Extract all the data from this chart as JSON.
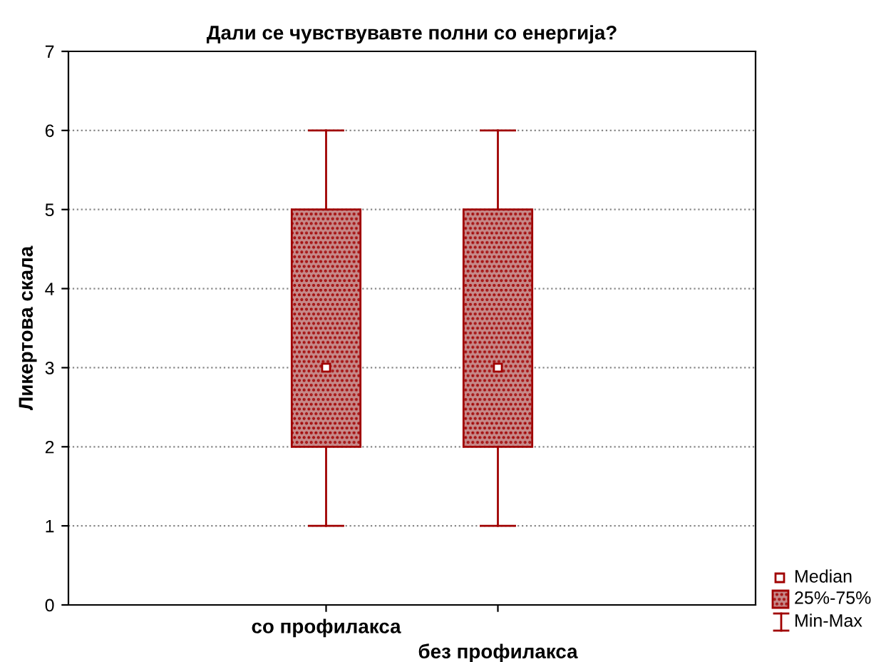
{
  "chart_data": {
    "type": "box",
    "title": "Дали се чувствувавте полни со енергија?",
    "ylabel": "Ликертова скала",
    "categories": [
      "со профилакса",
      "без профилакса"
    ],
    "boxes": [
      {
        "low": 1,
        "q1": 2,
        "median": 3,
        "q3": 5,
        "high": 6
      },
      {
        "low": 1,
        "q1": 2,
        "median": 3,
        "q3": 5,
        "high": 6
      }
    ],
    "color": "#a00000",
    "ylim": [
      0,
      7
    ],
    "yticks": [
      0,
      1,
      2,
      3,
      4,
      5,
      6,
      7
    ],
    "grid": "y",
    "annotations": [
      "Median",
      "25%-75%",
      "Min-Max"
    ]
  }
}
